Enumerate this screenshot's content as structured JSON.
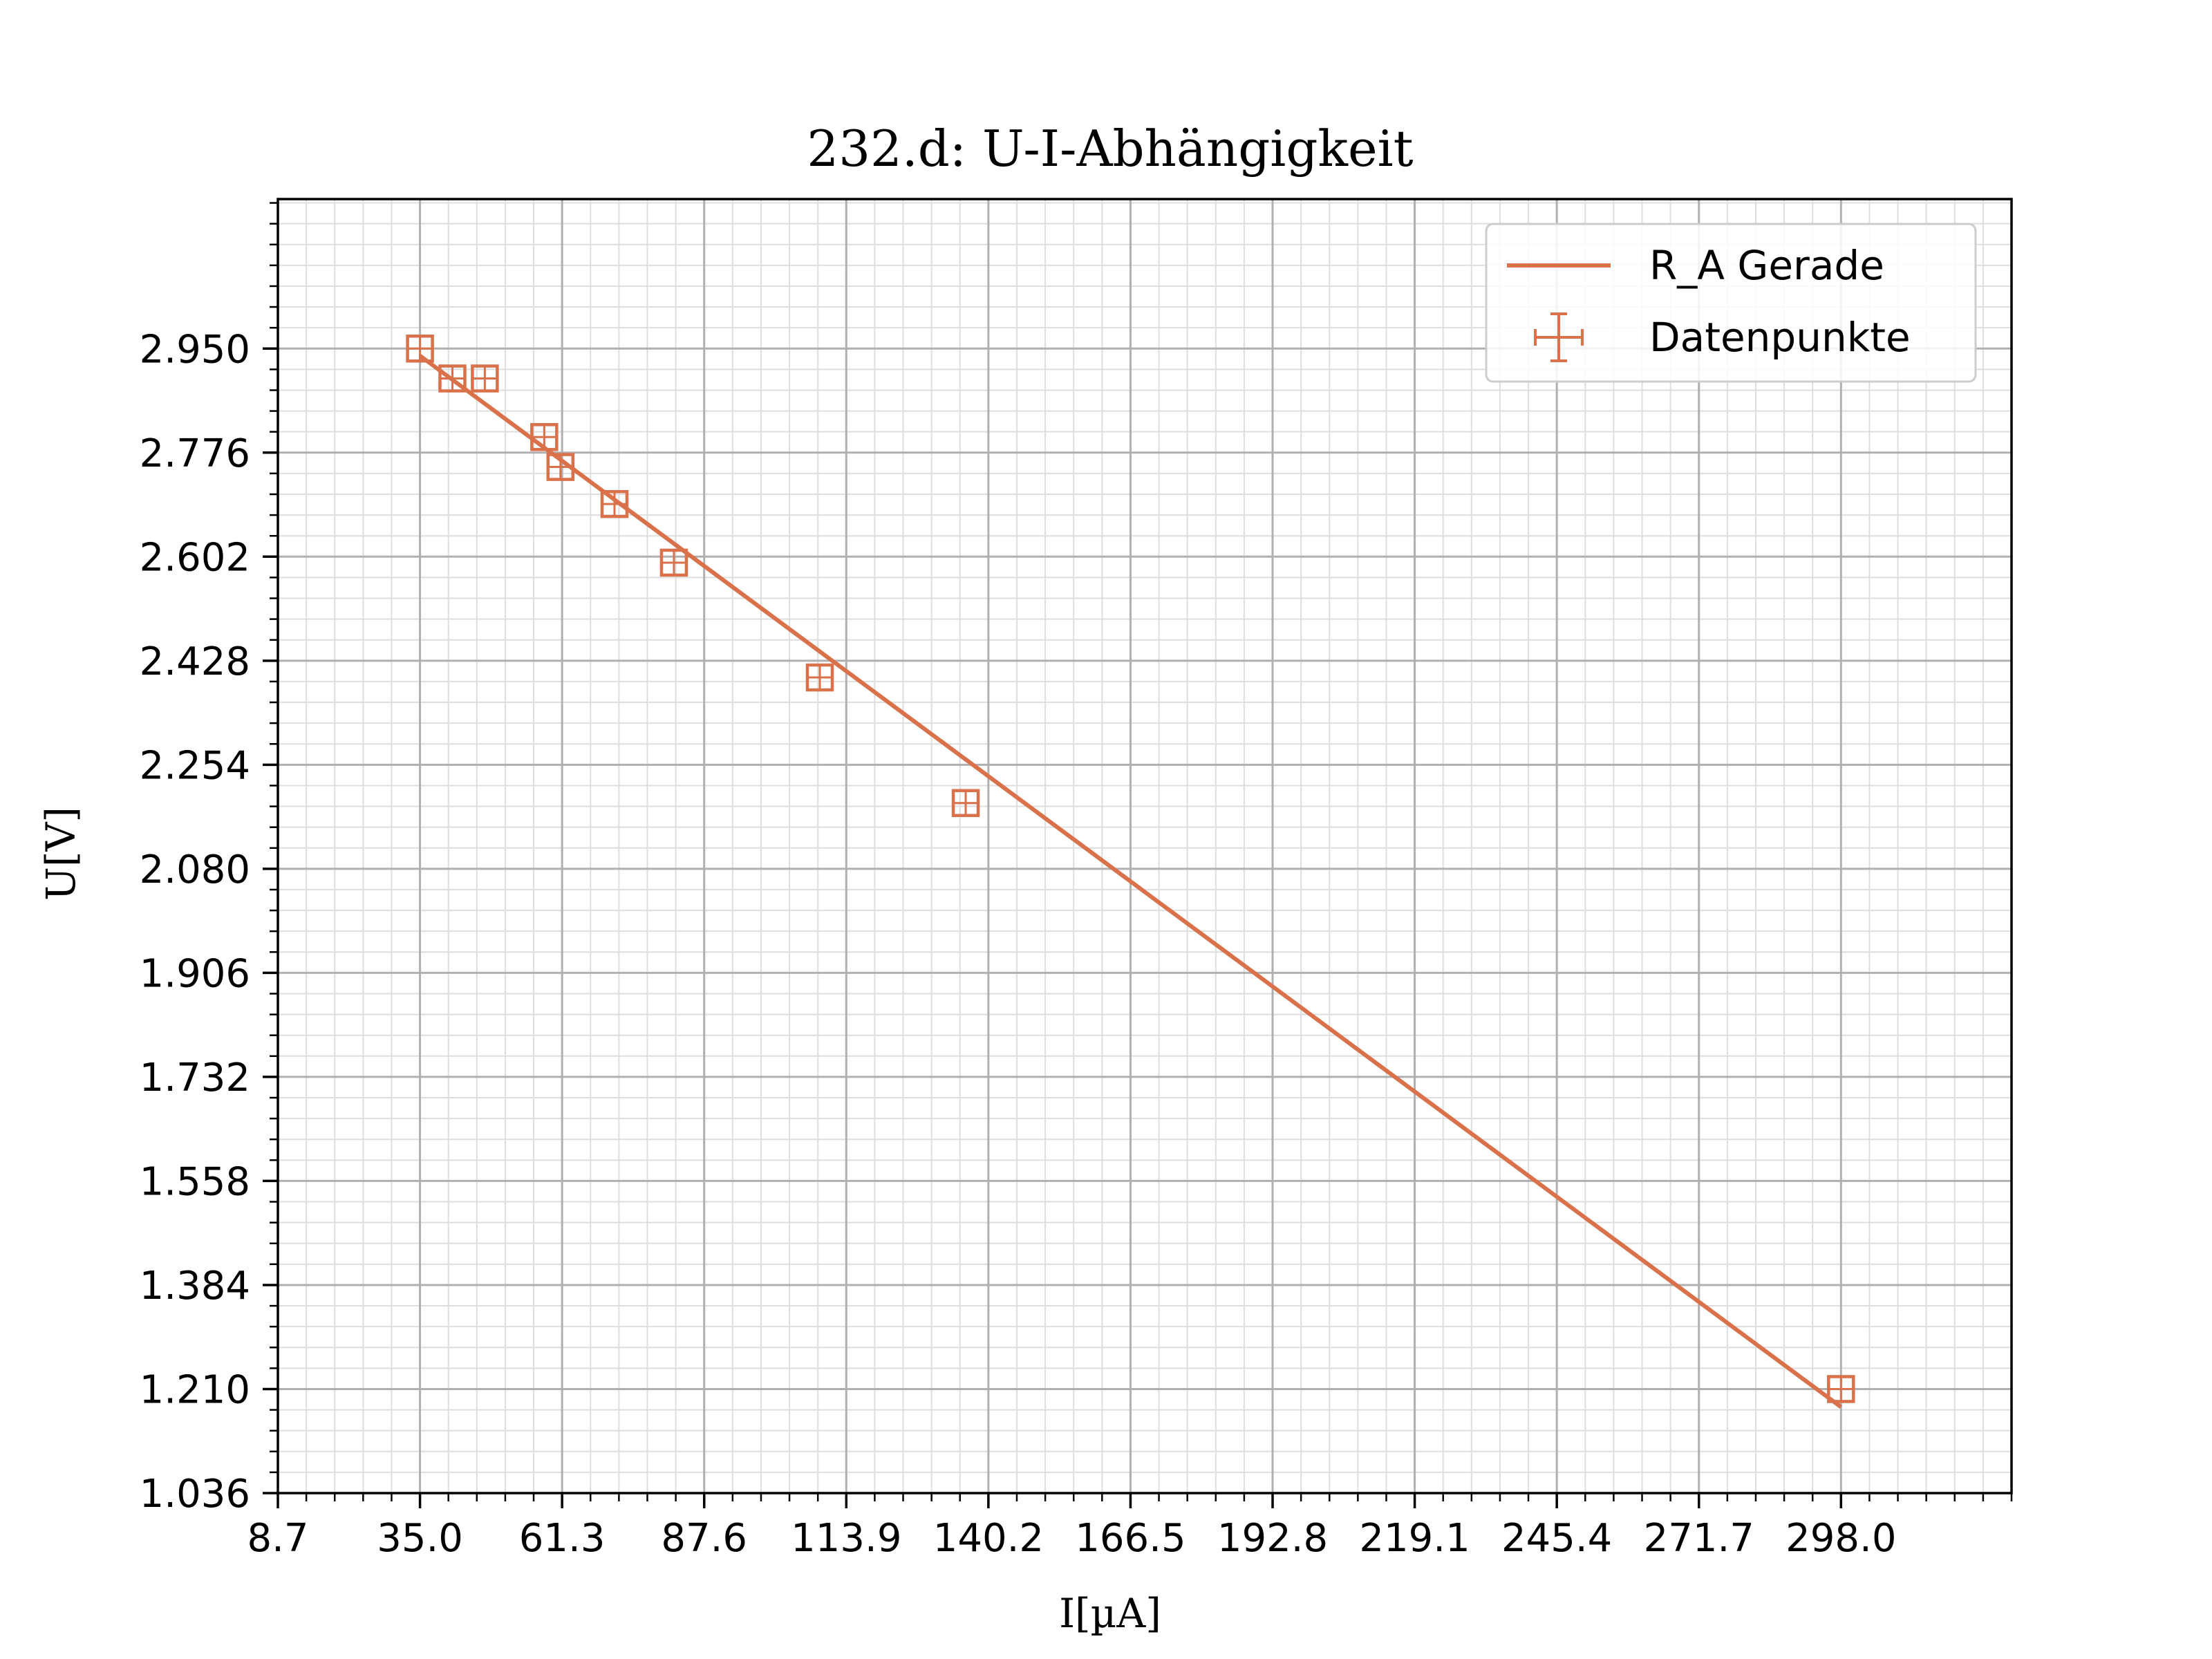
{
  "chart_data": {
    "type": "scatter",
    "title": "232.d: U-I-Abhängigkeit",
    "xlabel": "I[µA]",
    "ylabel": "U[V]",
    "xlim": [
      8.7,
      329.56
    ],
    "ylim": [
      1.036,
      3.2
    ],
    "x_ticks": [
      "8.7",
      "35.0",
      "61.3",
      "87.6",
      "113.9",
      "140.2",
      "166.5",
      "192.8",
      "219.1",
      "245.4",
      "271.7",
      "298.0"
    ],
    "y_ticks": [
      "1.036",
      "1.210",
      "1.384",
      "1.558",
      "1.732",
      "1.906",
      "2.080",
      "2.254",
      "2.428",
      "2.602",
      "2.776",
      "2.950"
    ],
    "grid": true,
    "minor_grid": true,
    "legend_position": "top-right",
    "series": [
      {
        "name": "R_A Gerade",
        "kind": "line",
        "color": "#d9714a",
        "points": [
          [
            35.0,
            2.938
          ],
          [
            298.0,
            1.18
          ]
        ]
      },
      {
        "name": "Datenpunkte",
        "kind": "errorbar",
        "color": "#d9714a",
        "x": [
          35.0,
          41.0,
          47.0,
          58.0,
          61.0,
          71.0,
          82.0,
          109.0,
          136.0,
          298.0
        ],
        "y": [
          2.95,
          2.9,
          2.9,
          2.802,
          2.752,
          2.69,
          2.592,
          2.4,
          2.19,
          1.21
        ]
      }
    ]
  }
}
